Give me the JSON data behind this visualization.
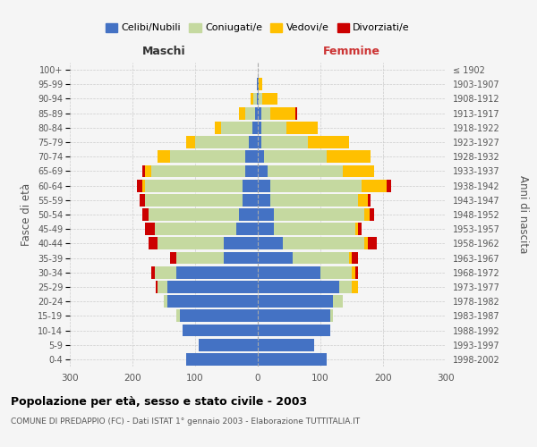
{
  "age_groups": [
    "0-4",
    "5-9",
    "10-14",
    "15-19",
    "20-24",
    "25-29",
    "30-34",
    "35-39",
    "40-44",
    "45-49",
    "50-54",
    "55-59",
    "60-64",
    "65-69",
    "70-74",
    "75-79",
    "80-84",
    "85-89",
    "90-94",
    "95-99",
    "100+"
  ],
  "birth_years": [
    "1998-2002",
    "1993-1997",
    "1988-1992",
    "1983-1987",
    "1978-1982",
    "1973-1977",
    "1968-1972",
    "1963-1967",
    "1958-1962",
    "1953-1957",
    "1948-1952",
    "1943-1947",
    "1938-1942",
    "1933-1937",
    "1928-1932",
    "1923-1927",
    "1918-1922",
    "1913-1917",
    "1908-1912",
    "1903-1907",
    "≤ 1902"
  ],
  "maschi": {
    "celibi": [
      115,
      95,
      120,
      125,
      145,
      145,
      130,
      55,
      55,
      35,
      30,
      25,
      25,
      20,
      20,
      15,
      8,
      5,
      2,
      1,
      0
    ],
    "coniugati": [
      0,
      0,
      0,
      5,
      5,
      15,
      35,
      75,
      105,
      130,
      145,
      155,
      155,
      150,
      120,
      85,
      50,
      15,
      5,
      1,
      0
    ],
    "vedovi": [
      0,
      0,
      0,
      0,
      0,
      0,
      0,
      0,
      0,
      0,
      0,
      0,
      5,
      10,
      20,
      15,
      10,
      10,
      5,
      0,
      0
    ],
    "divorziati": [
      0,
      0,
      0,
      0,
      0,
      3,
      5,
      10,
      15,
      15,
      10,
      8,
      8,
      5,
      0,
      0,
      0,
      0,
      0,
      0,
      0
    ]
  },
  "femmine": {
    "nubili": [
      110,
      90,
      115,
      115,
      120,
      130,
      100,
      55,
      40,
      25,
      25,
      20,
      20,
      15,
      10,
      5,
      5,
      5,
      2,
      1,
      0
    ],
    "coniugate": [
      0,
      0,
      0,
      5,
      15,
      20,
      50,
      90,
      130,
      130,
      145,
      140,
      145,
      120,
      100,
      75,
      40,
      15,
      5,
      1,
      0
    ],
    "vedove": [
      0,
      0,
      0,
      0,
      0,
      10,
      5,
      5,
      5,
      5,
      8,
      15,
      40,
      50,
      70,
      65,
      50,
      40,
      25,
      5,
      0
    ],
    "divorziate": [
      0,
      0,
      0,
      0,
      0,
      0,
      5,
      10,
      15,
      5,
      8,
      5,
      8,
      0,
      0,
      0,
      0,
      3,
      0,
      0,
      0
    ]
  },
  "colors": {
    "celibi_nubili": "#4472C4",
    "coniugati": "#c5d9a0",
    "vedovi": "#ffc000",
    "divorziati": "#cc0000"
  },
  "title": "Popolazione per età, sesso e stato civile - 2003",
  "subtitle": "COMUNE DI PREDAPPIO (FC) - Dati ISTAT 1° gennaio 2003 - Elaborazione TUTTITALIA.IT",
  "xlabel_left": "Maschi",
  "xlabel_right": "Femmine",
  "ylabel_left": "Fasce di età",
  "ylabel_right": "Anni di nascita",
  "xlim": 300,
  "background_color": "#f5f5f5",
  "legend_labels": [
    "Celibi/Nubili",
    "Coniugati/e",
    "Vedovi/e",
    "Divorziati/e"
  ]
}
